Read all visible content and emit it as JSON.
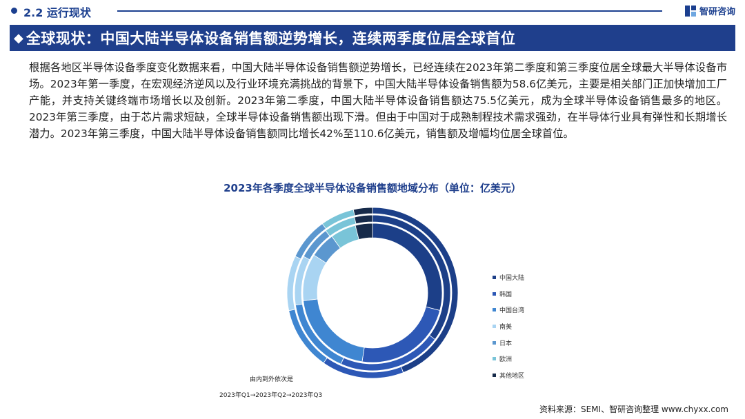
{
  "header": {
    "section": "2.2 运行现状",
    "brand": "智研咨询"
  },
  "banner": {
    "icon": "diamond-icon",
    "title": "全球现状：中国大陆半导体设备销售额逆势增长，连续两季度位居全球首位"
  },
  "body": {
    "paragraph": "根据各地区半导体设备季度变化数据来看，中国大陆半导体设备销售额逆势增长，已经连续在2023年第二季度和第三季度位居全球最大半导体设备市场。2023年第一季度，在宏观经济逆风以及行业环境充满挑战的背景下，中国大陆半导体设备销售额为58.6亿美元，主要是相关部门正加快增加工厂产能，并支持关键终端市场增长以及创新。2023年第二季度，中国大陆半导体设备销售额达75.5亿美元，成为全球半导体设备销售最多的地区。2023年第三季度，由于芯片需求短缺，全球半导体设备销售额出现下滑。但由于中国对于成熟制程技术需求强劲，在半导体行业具有弹性和长期增长潜力。2023年第三季度，中国大陆半导体设备销售额同比增长42%至110.6亿美元，销售额及增幅均位居全球首位。"
  },
  "chart_data": {
    "type": "pie",
    "subtype": "nested-donut",
    "title": "2023年各季度全球半导体设备销售额地域分布（单位：亿美元）",
    "categories": [
      "中国大陆",
      "韩国",
      "中国台湾",
      "南美",
      "日本",
      "欧洲",
      "其他地区"
    ],
    "colors": [
      "#1c3f88",
      "#2d58b6",
      "#3f86d1",
      "#a9d4f2",
      "#5b97cf",
      "#79c4d8",
      "#162a4a"
    ],
    "series": [
      {
        "name": "2023年Q1",
        "values": [
          58.6,
          47.0,
          42.0,
          22.0,
          12.0,
          12.0,
          8.0
        ]
      },
      {
        "name": "2023年Q2",
        "values": [
          75.5,
          46.0,
          34.0,
          22.0,
          15.0,
          14.0,
          8.0
        ]
      },
      {
        "name": "2023年Q3",
        "values": [
          110.6,
          39.0,
          30.0,
          26.0,
          20.0,
          16.0,
          9.0
        ]
      }
    ],
    "legend_position": "right",
    "note": "由内到外依次是",
    "sequence": "2023年Q1→2023年Q2→2023年Q3"
  },
  "source": "资料来源：SEMI、智研咨询整理 www.chyxx.com"
}
